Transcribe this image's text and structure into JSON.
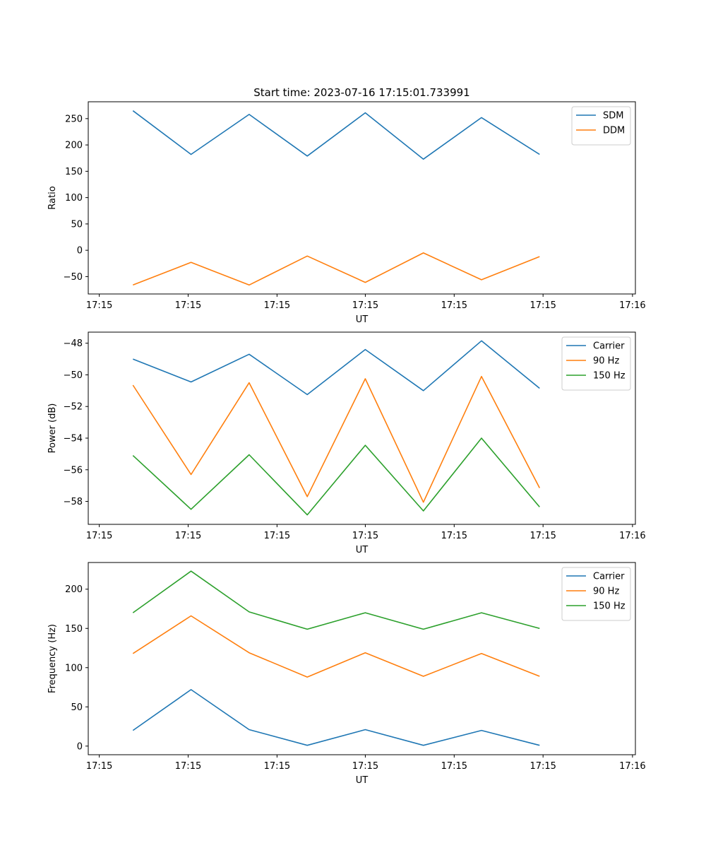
{
  "chart_data": [
    {
      "type": "line",
      "title": "Start time: 2023-07-16 17:15:01.733991",
      "xlabel": "UT",
      "ylabel": "Ratio",
      "x": [
        1,
        2,
        3,
        4,
        5,
        6,
        7,
        8
      ],
      "xlim": [
        0.23,
        9.65
      ],
      "xticks": [
        0.42,
        1.95,
        3.48,
        5.0,
        6.53,
        8.06,
        9.6
      ],
      "xtick_labels": [
        "17:15",
        "17:15",
        "17:15",
        "17:15",
        "17:15",
        "17:15",
        "17:16"
      ],
      "ylim": [
        -83,
        282
      ],
      "yticks": [
        -50,
        0,
        50,
        100,
        150,
        200,
        250
      ],
      "ytick_labels": [
        "−50",
        "0",
        "50",
        "100",
        "150",
        "200",
        "250"
      ],
      "legend_position": "top-right",
      "series": [
        {
          "name": "SDM",
          "color": "#1f77b4",
          "values": [
            265,
            182,
            258,
            179,
            261,
            173,
            252,
            182
          ]
        },
        {
          "name": "DDM",
          "color": "#ff7f0e",
          "values": [
            -66,
            -23,
            -66,
            -11,
            -61,
            -5,
            -56,
            -12
          ]
        }
      ]
    },
    {
      "type": "line",
      "title": "",
      "xlabel": "UT",
      "ylabel": "Power (dB)",
      "x": [
        1,
        2,
        3,
        4,
        5,
        6,
        7,
        8
      ],
      "xlim": [
        0.23,
        9.65
      ],
      "xticks": [
        0.42,
        1.95,
        3.48,
        5.0,
        6.53,
        8.06,
        9.6
      ],
      "xtick_labels": [
        "17:15",
        "17:15",
        "17:15",
        "17:15",
        "17:15",
        "17:15",
        "17:16"
      ],
      "ylim": [
        -59.45,
        -47.3
      ],
      "yticks": [
        -58,
        -56,
        -54,
        -52,
        -50,
        -48
      ],
      "ytick_labels": [
        "−58",
        "−56",
        "−54",
        "−52",
        "−50",
        "−48"
      ],
      "legend_position": "top-right",
      "series": [
        {
          "name": "Carrier",
          "color": "#1f77b4",
          "values": [
            -49.0,
            -50.45,
            -48.7,
            -51.25,
            -48.4,
            -51.0,
            -47.85,
            -50.85
          ]
        },
        {
          "name": "90 Hz",
          "color": "#ff7f0e",
          "values": [
            -50.65,
            -56.3,
            -50.5,
            -57.7,
            -50.25,
            -58.05,
            -50.1,
            -57.15
          ]
        },
        {
          "name": "150 Hz",
          "color": "#2ca02c",
          "values": [
            -55.1,
            -58.5,
            -55.05,
            -58.85,
            -54.45,
            -58.6,
            -54.0,
            -58.35
          ]
        }
      ]
    },
    {
      "type": "line",
      "title": "",
      "xlabel": "UT",
      "ylabel": "Frequency (Hz)",
      "x": [
        1,
        2,
        3,
        4,
        5,
        6,
        7,
        8
      ],
      "xlim": [
        0.23,
        9.65
      ],
      "xticks": [
        0.42,
        1.95,
        3.48,
        5.0,
        6.53,
        8.06,
        9.6
      ],
      "xtick_labels": [
        "17:15",
        "17:15",
        "17:15",
        "17:15",
        "17:15",
        "17:15",
        "17:16"
      ],
      "ylim": [
        -11,
        234
      ],
      "yticks": [
        0,
        50,
        100,
        150,
        200
      ],
      "ytick_labels": [
        "0",
        "50",
        "100",
        "150",
        "200"
      ],
      "legend_position": "top-right",
      "series": [
        {
          "name": "Carrier",
          "color": "#1f77b4",
          "values": [
            20,
            72,
            21,
            1,
            21,
            1,
            20,
            1
          ]
        },
        {
          "name": "90 Hz",
          "color": "#ff7f0e",
          "values": [
            118,
            166,
            119,
            88,
            119,
            89,
            118,
            89
          ]
        },
        {
          "name": "150 Hz",
          "color": "#2ca02c",
          "values": [
            170,
            223,
            171,
            149,
            170,
            149,
            170,
            150
          ]
        }
      ]
    }
  ]
}
